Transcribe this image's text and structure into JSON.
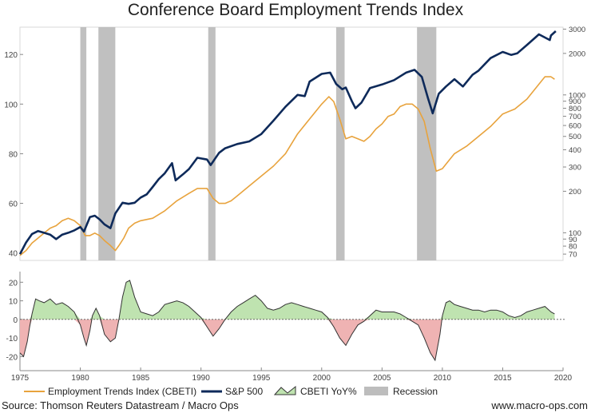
{
  "colors": {
    "cbeti": "#E8A33D",
    "sp500": "#0E2A5A",
    "recession": "#BDBDBD",
    "yoy_positive": "#BFE3B0",
    "yoy_negative": "#EFB3B3",
    "yoy_line": "#333333"
  },
  "chart_data": [
    {
      "type": "line",
      "title": "Conference Board Employment Trends Index",
      "x_range": [
        1975,
        2020
      ],
      "y_left": {
        "range": [
          37,
          131
        ],
        "ticks": [
          40,
          60,
          80,
          100,
          120
        ]
      },
      "y_right": {
        "scale": "log",
        "range": [
          63,
          3100
        ],
        "ticks": [
          70,
          80,
          90,
          100,
          200,
          300,
          400,
          500,
          600,
          700,
          800,
          900,
          1000,
          2000,
          3000
        ],
        "tick_labels": [
          "70",
          "80",
          "90",
          "100",
          "200",
          "300",
          "400",
          "500",
          "600",
          "700",
          "800",
          "900",
          "1000",
          "2000",
          "3000"
        ]
      },
      "recessions": [
        [
          1980.0,
          1980.5
        ],
        [
          1981.5,
          1982.9
        ],
        [
          1990.6,
          1991.2
        ],
        [
          2001.2,
          2001.9
        ],
        [
          2007.9,
          2009.5
        ]
      ],
      "series": [
        {
          "name": "Employment Trends Index (CBETI)",
          "axis": "left",
          "points": [
            [
              1975.0,
              39
            ],
            [
              1975.5,
              41
            ],
            [
              1976.0,
              44
            ],
            [
              1976.5,
              46
            ],
            [
              1977.0,
              48
            ],
            [
              1977.5,
              50
            ],
            [
              1978.0,
              51
            ],
            [
              1978.5,
              53
            ],
            [
              1979.0,
              54
            ],
            [
              1979.5,
              53
            ],
            [
              1980.0,
              51
            ],
            [
              1980.4,
              47
            ],
            [
              1980.8,
              47
            ],
            [
              1981.2,
              48
            ],
            [
              1981.6,
              47
            ],
            [
              1982.0,
              45
            ],
            [
              1982.5,
              43
            ],
            [
              1982.9,
              41
            ],
            [
              1983.2,
              43
            ],
            [
              1983.6,
              46
            ],
            [
              1984.0,
              50
            ],
            [
              1984.5,
              52
            ],
            [
              1985.0,
              53
            ],
            [
              1986.0,
              54
            ],
            [
              1987.0,
              57
            ],
            [
              1988.0,
              61
            ],
            [
              1989.0,
              64
            ],
            [
              1989.7,
              66
            ],
            [
              1990.5,
              66
            ],
            [
              1991.0,
              62
            ],
            [
              1991.5,
              60
            ],
            [
              1992.0,
              60
            ],
            [
              1992.5,
              61
            ],
            [
              1993.0,
              63
            ],
            [
              1994.0,
              67
            ],
            [
              1995.0,
              71
            ],
            [
              1996.0,
              75
            ],
            [
              1997.0,
              80
            ],
            [
              1998.0,
              88
            ],
            [
              1999.0,
              94
            ],
            [
              2000.0,
              100
            ],
            [
              2000.6,
              103
            ],
            [
              2001.0,
              101
            ],
            [
              2001.5,
              94
            ],
            [
              2002.0,
              86
            ],
            [
              2002.5,
              87
            ],
            [
              2003.0,
              86
            ],
            [
              2003.5,
              85
            ],
            [
              2004.0,
              87
            ],
            [
              2004.5,
              90
            ],
            [
              2005.0,
              92
            ],
            [
              2005.5,
              95
            ],
            [
              2006.0,
              96
            ],
            [
              2006.5,
              99
            ],
            [
              2007.0,
              100
            ],
            [
              2007.5,
              100
            ],
            [
              2008.0,
              98
            ],
            [
              2008.5,
              93
            ],
            [
              2009.0,
              82
            ],
            [
              2009.5,
              73
            ],
            [
              2010.0,
              74
            ],
            [
              2010.5,
              77
            ],
            [
              2011.0,
              80
            ],
            [
              2012.0,
              83
            ],
            [
              2013.0,
              87
            ],
            [
              2014.0,
              91
            ],
            [
              2015.0,
              96
            ],
            [
              2016.0,
              98
            ],
            [
              2017.0,
              102
            ],
            [
              2018.0,
              108
            ],
            [
              2018.5,
              111
            ],
            [
              2019.0,
              111
            ],
            [
              2019.3,
              110
            ]
          ]
        },
        {
          "name": "S&P 500",
          "axis": "right",
          "points": [
            [
              1975.0,
              70
            ],
            [
              1975.5,
              85
            ],
            [
              1976.0,
              98
            ],
            [
              1976.5,
              103
            ],
            [
              1977.0,
              100
            ],
            [
              1977.5,
              97
            ],
            [
              1978.0,
              90
            ],
            [
              1978.5,
              97
            ],
            [
              1979.0,
              100
            ],
            [
              1979.5,
              104
            ],
            [
              1980.0,
              110
            ],
            [
              1980.3,
              102
            ],
            [
              1980.8,
              130
            ],
            [
              1981.2,
              133
            ],
            [
              1981.6,
              125
            ],
            [
              1982.0,
              115
            ],
            [
              1982.5,
              108
            ],
            [
              1982.9,
              138
            ],
            [
              1983.5,
              165
            ],
            [
              1984.0,
              162
            ],
            [
              1984.5,
              165
            ],
            [
              1985.0,
              180
            ],
            [
              1985.5,
              190
            ],
            [
              1986.0,
              215
            ],
            [
              1986.5,
              245
            ],
            [
              1987.0,
              270
            ],
            [
              1987.6,
              320
            ],
            [
              1987.9,
              240
            ],
            [
              1988.5,
              265
            ],
            [
              1989.0,
              290
            ],
            [
              1989.7,
              350
            ],
            [
              1990.5,
              340
            ],
            [
              1990.8,
              310
            ],
            [
              1991.5,
              380
            ],
            [
              1992.0,
              410
            ],
            [
              1993.0,
              440
            ],
            [
              1994.0,
              460
            ],
            [
              1995.0,
              520
            ],
            [
              1996.0,
              650
            ],
            [
              1997.0,
              820
            ],
            [
              1998.0,
              1000
            ],
            [
              1998.6,
              980
            ],
            [
              1999.0,
              1250
            ],
            [
              2000.0,
              1420
            ],
            [
              2000.7,
              1450
            ],
            [
              2001.2,
              1200
            ],
            [
              2001.7,
              1100
            ],
            [
              2002.0,
              1130
            ],
            [
              2002.5,
              900
            ],
            [
              2002.8,
              800
            ],
            [
              2003.3,
              880
            ],
            [
              2004.0,
              1120
            ],
            [
              2005.0,
              1190
            ],
            [
              2006.0,
              1280
            ],
            [
              2007.0,
              1450
            ],
            [
              2007.7,
              1520
            ],
            [
              2008.3,
              1350
            ],
            [
              2008.8,
              950
            ],
            [
              2009.2,
              735
            ],
            [
              2009.7,
              1020
            ],
            [
              2010.3,
              1150
            ],
            [
              2011.0,
              1300
            ],
            [
              2011.7,
              1150
            ],
            [
              2012.5,
              1400
            ],
            [
              2013.0,
              1500
            ],
            [
              2014.0,
              1850
            ],
            [
              2015.0,
              2050
            ],
            [
              2015.7,
              1950
            ],
            [
              2016.2,
              2000
            ],
            [
              2017.0,
              2300
            ],
            [
              2018.0,
              2750
            ],
            [
              2018.9,
              2500
            ],
            [
              2019.0,
              2700
            ],
            [
              2019.4,
              2900
            ]
          ]
        }
      ]
    },
    {
      "type": "area",
      "x_range": [
        1975,
        2020
      ],
      "y_range": [
        -25,
        24
      ],
      "y_ticks": [
        -20,
        -10,
        0,
        10,
        20
      ],
      "x_ticks": [
        1975,
        1980,
        1985,
        1990,
        1995,
        2000,
        2005,
        2010,
        2015,
        2020
      ],
      "series": [
        {
          "name": "CBETI YoY%",
          "points": [
            [
              1975.0,
              -18
            ],
            [
              1975.3,
              -20
            ],
            [
              1975.6,
              -12
            ],
            [
              1975.8,
              -4
            ],
            [
              1976.0,
              3
            ],
            [
              1976.3,
              11
            ],
            [
              1976.6,
              10
            ],
            [
              1977.0,
              9
            ],
            [
              1977.5,
              11
            ],
            [
              1978.0,
              8
            ],
            [
              1978.5,
              9
            ],
            [
              1979.0,
              7
            ],
            [
              1979.5,
              4
            ],
            [
              1980.0,
              -3
            ],
            [
              1980.3,
              -10
            ],
            [
              1980.5,
              -14
            ],
            [
              1980.8,
              -6
            ],
            [
              1981.0,
              2
            ],
            [
              1981.3,
              6
            ],
            [
              1981.6,
              2
            ],
            [
              1982.0,
              -8
            ],
            [
              1982.5,
              -12
            ],
            [
              1982.9,
              -10
            ],
            [
              1983.2,
              0
            ],
            [
              1983.5,
              12
            ],
            [
              1983.8,
              20
            ],
            [
              1984.1,
              21
            ],
            [
              1984.5,
              12
            ],
            [
              1985.0,
              4
            ],
            [
              1985.5,
              3
            ],
            [
              1986.0,
              2
            ],
            [
              1986.5,
              4
            ],
            [
              1987.0,
              8
            ],
            [
              1987.5,
              9
            ],
            [
              1988.0,
              10
            ],
            [
              1988.5,
              9
            ],
            [
              1989.0,
              7
            ],
            [
              1989.5,
              4
            ],
            [
              1990.0,
              1
            ],
            [
              1990.5,
              -4
            ],
            [
              1991.0,
              -9
            ],
            [
              1991.5,
              -5
            ],
            [
              1992.0,
              0
            ],
            [
              1992.5,
              4
            ],
            [
              1993.0,
              7
            ],
            [
              1993.5,
              9
            ],
            [
              1994.0,
              11
            ],
            [
              1994.5,
              13
            ],
            [
              1995.0,
              10
            ],
            [
              1995.5,
              6
            ],
            [
              1996.0,
              5
            ],
            [
              1996.5,
              6
            ],
            [
              1997.0,
              8
            ],
            [
              1997.5,
              9
            ],
            [
              1998.0,
              8
            ],
            [
              1998.5,
              7
            ],
            [
              1999.0,
              6
            ],
            [
              1999.5,
              5
            ],
            [
              2000.0,
              4
            ],
            [
              2000.5,
              1
            ],
            [
              2001.0,
              -4
            ],
            [
              2001.5,
              -10
            ],
            [
              2002.0,
              -14
            ],
            [
              2002.5,
              -8
            ],
            [
              2003.0,
              -3
            ],
            [
              2003.5,
              -1
            ],
            [
              2004.0,
              2
            ],
            [
              2004.5,
              5
            ],
            [
              2005.0,
              4
            ],
            [
              2005.5,
              4
            ],
            [
              2006.0,
              4
            ],
            [
              2006.5,
              3
            ],
            [
              2007.0,
              1
            ],
            [
              2007.5,
              -1
            ],
            [
              2008.0,
              -3
            ],
            [
              2008.5,
              -10
            ],
            [
              2009.0,
              -18
            ],
            [
              2009.4,
              -22
            ],
            [
              2009.8,
              -8
            ],
            [
              2010.0,
              2
            ],
            [
              2010.3,
              9
            ],
            [
              2010.6,
              10
            ],
            [
              2011.0,
              8
            ],
            [
              2011.5,
              7
            ],
            [
              2012.0,
              6
            ],
            [
              2012.5,
              5
            ],
            [
              2013.0,
              5
            ],
            [
              2013.5,
              4
            ],
            [
              2014.0,
              5
            ],
            [
              2014.5,
              5
            ],
            [
              2015.0,
              4
            ],
            [
              2015.5,
              2
            ],
            [
              2016.0,
              1
            ],
            [
              2016.5,
              2
            ],
            [
              2017.0,
              4
            ],
            [
              2017.5,
              5
            ],
            [
              2018.0,
              6
            ],
            [
              2018.5,
              7
            ],
            [
              2019.0,
              4
            ],
            [
              2019.3,
              3
            ]
          ]
        }
      ]
    }
  ],
  "legend": [
    {
      "key": "cbeti",
      "label": "Employment Trends Index (CBETI)"
    },
    {
      "key": "sp500",
      "label": "S&P 500"
    },
    {
      "key": "yoy",
      "label": "CBETI YoY%"
    },
    {
      "key": "recession",
      "label": "Recession"
    }
  ],
  "footer": {
    "source": "Source: Thomson Reuters Datastream / Macro Ops",
    "website": "www.macro-ops.com"
  }
}
